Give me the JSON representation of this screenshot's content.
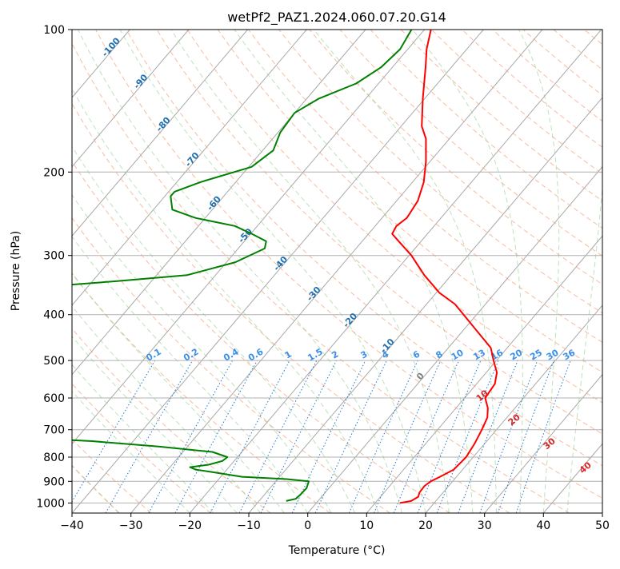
{
  "chart_data": {
    "type": "skew-t",
    "title": "wetPf2_PAZ1.2024.060.07.20.G14",
    "xlabel": "Temperature (°C)",
    "ylabel": "Pressure (hPa)",
    "xlim": [
      -40,
      50
    ],
    "ylim": [
      1050,
      100
    ],
    "y_scale": "log",
    "grid": true,
    "x_ticks": [
      "−40",
      "−30",
      "−20",
      "−10",
      "0",
      "10",
      "20",
      "30",
      "40",
      "50"
    ],
    "y_ticks": [
      "100",
      "200",
      "300",
      "400",
      "500",
      "600",
      "700",
      "800",
      "900",
      "1000"
    ],
    "isotherm_labels": [
      {
        "text": "-100",
        "t": -100,
        "p": 110
      },
      {
        "text": "-90",
        "t": -90,
        "p": 130
      },
      {
        "text": "-80",
        "t": -80,
        "p": 160
      },
      {
        "text": "-70",
        "t": -70,
        "p": 190
      },
      {
        "text": "-60",
        "t": -60,
        "p": 235
      },
      {
        "text": "-50",
        "t": -50,
        "p": 275
      },
      {
        "text": "-40",
        "t": -40,
        "p": 315
      },
      {
        "text": "-30",
        "t": -30,
        "p": 365
      },
      {
        "text": "-20",
        "t": -20,
        "p": 415
      },
      {
        "text": "-10",
        "t": -10,
        "p": 470
      },
      {
        "text": "0",
        "t": 0,
        "p": 545
      }
    ],
    "mixing_ratio_labels": [
      "0.1",
      "0.2",
      "0.4",
      "0.6",
      "1",
      "1.5",
      "2",
      "3",
      "4",
      "6",
      "8",
      "10",
      "13",
      "16",
      "20",
      "25",
      "30",
      "36"
    ],
    "theta_e_labels": [
      "10",
      "20",
      "30",
      "40"
    ],
    "series": [
      {
        "role": "temperature",
        "color": "#ff0000",
        "points": [
          [
            1000,
            14.2
          ],
          [
            990,
            15.8
          ],
          [
            970,
            16.4
          ],
          [
            950,
            16.0
          ],
          [
            920,
            15.9
          ],
          [
            900,
            16.3
          ],
          [
            880,
            17.2
          ],
          [
            850,
            18.5
          ],
          [
            800,
            18.8
          ],
          [
            750,
            18.3
          ],
          [
            700,
            17.5
          ],
          [
            660,
            16.7
          ],
          [
            630,
            15.4
          ],
          [
            600,
            13.5
          ],
          [
            580,
            13.3
          ],
          [
            560,
            13.1
          ],
          [
            530,
            11.8
          ],
          [
            500,
            9.5
          ],
          [
            470,
            7.2
          ],
          [
            430,
            2.0
          ],
          [
            400,
            -2.2
          ],
          [
            380,
            -5.2
          ],
          [
            360,
            -9.4
          ],
          [
            330,
            -14.6
          ],
          [
            300,
            -19.6
          ],
          [
            280,
            -23.8
          ],
          [
            270,
            -26.0
          ],
          [
            260,
            -26.4
          ],
          [
            250,
            -25.8
          ],
          [
            230,
            -26.4
          ],
          [
            210,
            -28.1
          ],
          [
            190,
            -30.7
          ],
          [
            170,
            -34.0
          ],
          [
            160,
            -36.5
          ],
          [
            140,
            -40.3
          ],
          [
            120,
            -44.4
          ],
          [
            110,
            -46.8
          ],
          [
            100,
            -48.9
          ]
        ]
      },
      {
        "role": "dewpoint",
        "color": "#008000",
        "points": [
          [
            990,
            -5.4
          ],
          [
            980,
            -4.1
          ],
          [
            960,
            -3.9
          ],
          [
            930,
            -3.8
          ],
          [
            900,
            -4.4
          ],
          [
            890,
            -8.5
          ],
          [
            880,
            -16.4
          ],
          [
            860,
            -22.2
          ],
          [
            850,
            -25.3
          ],
          [
            840,
            -26.6
          ],
          [
            830,
            -23.8
          ],
          [
            815,
            -22.0
          ],
          [
            800,
            -21.7
          ],
          [
            780,
            -25.0
          ],
          [
            760,
            -34.9
          ],
          [
            740,
            -47.0
          ],
          [
            720,
            -68.0
          ],
          [
            680,
            -73.5
          ],
          [
            660,
            -68.9
          ],
          [
            650,
            -71.2
          ],
          [
            630,
            -74.0
          ],
          [
            610,
            -68.4
          ],
          [
            595,
            -72.5
          ],
          [
            500,
            -79.0
          ],
          [
            480,
            -84.5
          ],
          [
            460,
            -87.0
          ],
          [
            430,
            -85.0
          ],
          [
            410,
            -82.7
          ],
          [
            390,
            -84.2
          ],
          [
            370,
            -84.5
          ],
          [
            350,
            -78.3
          ],
          [
            340,
            -66.0
          ],
          [
            330,
            -54.8
          ],
          [
            310,
            -48.5
          ],
          [
            290,
            -45.5
          ],
          [
            280,
            -46.3
          ],
          [
            270,
            -49.8
          ],
          [
            260,
            -53.8
          ],
          [
            250,
            -61.6
          ],
          [
            240,
            -66.8
          ],
          [
            225,
            -69.0
          ],
          [
            220,
            -69.0
          ],
          [
            210,
            -66.0
          ],
          [
            195,
            -59.5
          ],
          [
            180,
            -58.2
          ],
          [
            165,
            -59.6
          ],
          [
            150,
            -60.0
          ],
          [
            140,
            -58.0
          ],
          [
            130,
            -53.8
          ],
          [
            120,
            -51.9
          ],
          [
            110,
            -51.3
          ],
          [
            100,
            -52.2
          ]
        ]
      }
    ]
  }
}
